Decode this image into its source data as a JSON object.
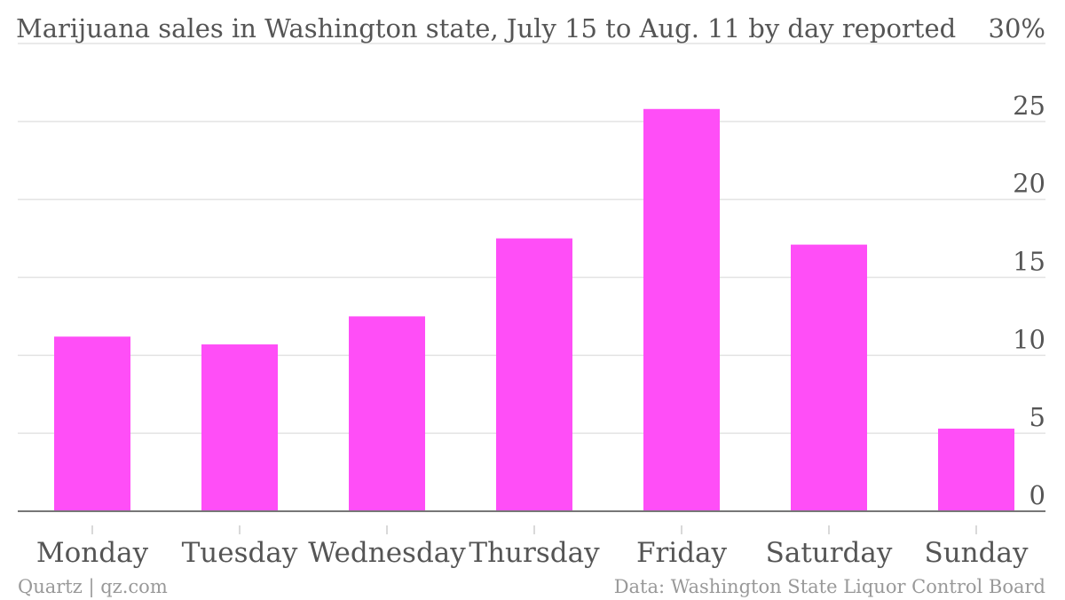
{
  "chart_data": {
    "type": "bar",
    "title": "Marijuana sales in Washington state, July 15 to Aug. 11 by day reported",
    "categories": [
      "Monday",
      "Tuesday",
      "Wednesday",
      "Thursday",
      "Friday",
      "Saturday",
      "Sunday"
    ],
    "values": [
      11.2,
      10.7,
      12.5,
      17.5,
      25.8,
      17.1,
      5.3
    ],
    "ylim": [
      0,
      30
    ],
    "yticks": [
      0,
      5,
      10,
      15,
      20,
      25,
      30
    ],
    "ytick_labels": [
      "0",
      "5",
      "10",
      "15",
      "20",
      "25",
      "30%"
    ],
    "y_axis_side": "right",
    "grid": true,
    "bar_color": "#ff4ef7"
  },
  "footer": {
    "source_left": "Quartz | qz.com",
    "source_right": "Data: Washington State Liquor Control Board"
  }
}
